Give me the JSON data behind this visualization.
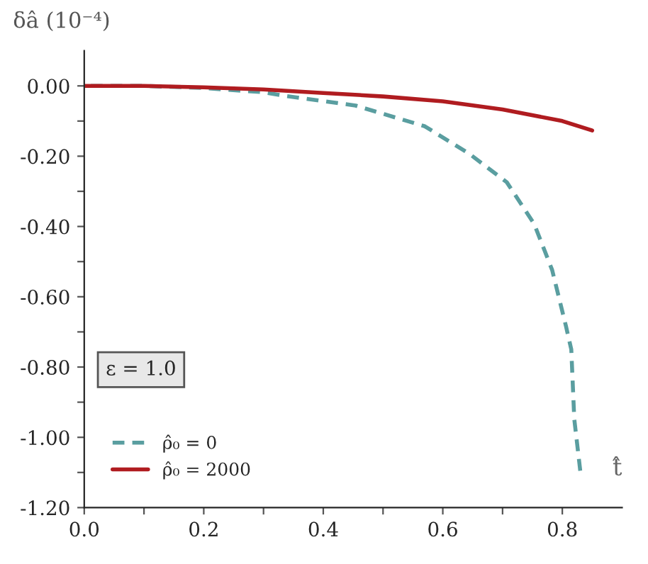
{
  "chart_data": {
    "type": "line",
    "xlabel": "t̂",
    "ylabel": "δâ (10⁻⁴)",
    "annotations": [
      "ε = 1.0"
    ],
    "series": [
      {
        "name": "ρ̂₀ = 0",
        "color": "#5a9ea0",
        "line_style": "dashed",
        "x": [
          0.0,
          0.1,
          0.2,
          0.3,
          0.339,
          0.454,
          0.57,
          0.645,
          0.707,
          0.753,
          0.783,
          0.806,
          0.815,
          0.82,
          0.83
        ],
        "values": [
          0.0,
          0.0,
          -0.006,
          -0.018,
          -0.029,
          -0.056,
          -0.115,
          -0.194,
          -0.274,
          -0.393,
          -0.524,
          -0.683,
          -0.75,
          -0.948,
          -1.095
        ]
      },
      {
        "name": "ρ̂₀ = 2000",
        "color": "#b01c20",
        "line_style": "solid",
        "x": [
          0.0,
          0.1,
          0.2,
          0.3,
          0.4,
          0.5,
          0.6,
          0.7,
          0.8,
          0.85
        ],
        "values": [
          0.0,
          0.0,
          -0.004,
          -0.01,
          -0.02,
          -0.03,
          -0.044,
          -0.067,
          -0.1,
          -0.127
        ]
      }
    ],
    "xlim": [
      0.0,
      0.9
    ],
    "ylim": [
      -1.2,
      0.1
    ],
    "xticks": [
      {
        "value": 0.0,
        "label": "0.0"
      },
      {
        "value": 0.1,
        "label": null
      },
      {
        "value": 0.2,
        "label": "0.2"
      },
      {
        "value": 0.3,
        "label": null
      },
      {
        "value": 0.4,
        "label": "0.4"
      },
      {
        "value": 0.5,
        "label": null
      },
      {
        "value": 0.6,
        "label": "0.6"
      },
      {
        "value": 0.7,
        "label": null
      },
      {
        "value": 0.8,
        "label": "0.8"
      }
    ],
    "yticks": [
      {
        "value": 0.0,
        "label": "0.00"
      },
      {
        "value": -0.1,
        "label": null
      },
      {
        "value": -0.2,
        "label": "-0.20"
      },
      {
        "value": -0.3,
        "label": null
      },
      {
        "value": -0.4,
        "label": "-0.40"
      },
      {
        "value": -0.5,
        "label": null
      },
      {
        "value": -0.6,
        "label": "-0.60"
      },
      {
        "value": -0.7,
        "label": null
      },
      {
        "value": -0.8,
        "label": "-0.80"
      },
      {
        "value": -0.9,
        "label": null
      },
      {
        "value": -1.0,
        "label": "-1.00"
      },
      {
        "value": -1.1,
        "label": null
      },
      {
        "value": -1.2,
        "label": "-1.20"
      }
    ],
    "grid": false,
    "legend": "bottom left"
  }
}
